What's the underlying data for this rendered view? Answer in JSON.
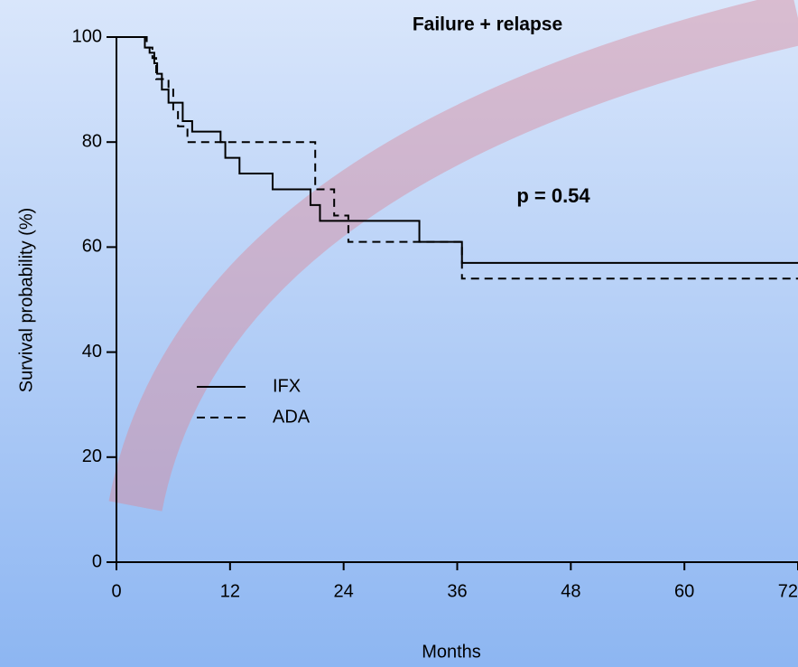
{
  "chart_data": {
    "type": "step",
    "title": "Failure + relapse",
    "annotation": "p = 0.54",
    "x_label": "Months",
    "y_label": "Survival probability (%)",
    "xlim": [
      0,
      72
    ],
    "xticks": [
      0,
      12,
      24,
      36,
      48,
      60,
      72
    ],
    "ylim": [
      0,
      100
    ],
    "yticks": [
      0,
      20,
      40,
      60,
      80,
      100
    ],
    "series": [
      {
        "name": "IFX",
        "color": "#000000",
        "line_style": "solid",
        "x": [
          0,
          3,
          3.5,
          4,
          4.3,
          4.8,
          5.5,
          7,
          8,
          11,
          11.5,
          13,
          16.5,
          20.5,
          21.5,
          32,
          36.5,
          72
        ],
        "values": [
          100,
          98,
          97,
          95,
          93,
          90,
          87.5,
          84,
          82,
          80,
          77,
          74,
          71,
          68,
          65,
          61,
          57,
          57
        ]
      },
      {
        "name": "ADA",
        "color": "#000000",
        "line_style": "dashed",
        "x": [
          0,
          3.2,
          3.8,
          4.2,
          5.5,
          6,
          6.5,
          7.5,
          21,
          23,
          24.5,
          36.5,
          72
        ],
        "values": [
          100,
          98,
          96,
          92,
          90,
          86,
          83,
          80,
          71,
          66,
          61,
          54,
          54
        ]
      }
    ]
  }
}
